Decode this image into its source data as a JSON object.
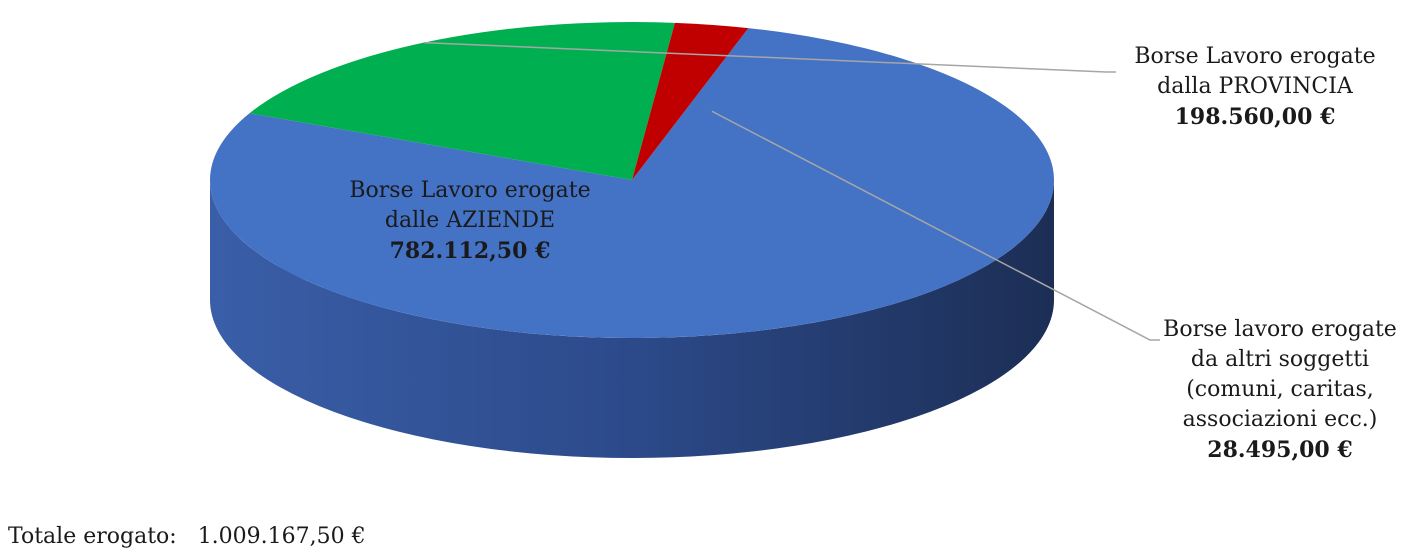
{
  "chart_data": {
    "type": "pie",
    "title": "",
    "slices": [
      {
        "label_lines": [
          "Borse Lavoro erogate",
          "dalle AZIENDE"
        ],
        "value": 782112.5,
        "value_label": "782.112,50 €",
        "color": "#4472C4"
      },
      {
        "label_lines": [
          "Borse Lavoro erogate",
          "dalla PROVINCIA"
        ],
        "value": 198560.0,
        "value_label": "198.560,00 €",
        "color": "#00B050"
      },
      {
        "label_lines": [
          "Borse lavoro erogate",
          "da altri soggetti",
          "(comuni, caritas,",
          "associazioni ecc.)"
        ],
        "value": 28495.0,
        "value_label": "28.495,00 €",
        "color": "#C00000"
      }
    ]
  },
  "footer": {
    "total_label": "Totale erogato:",
    "total_value": "1.009.167,50 €"
  }
}
